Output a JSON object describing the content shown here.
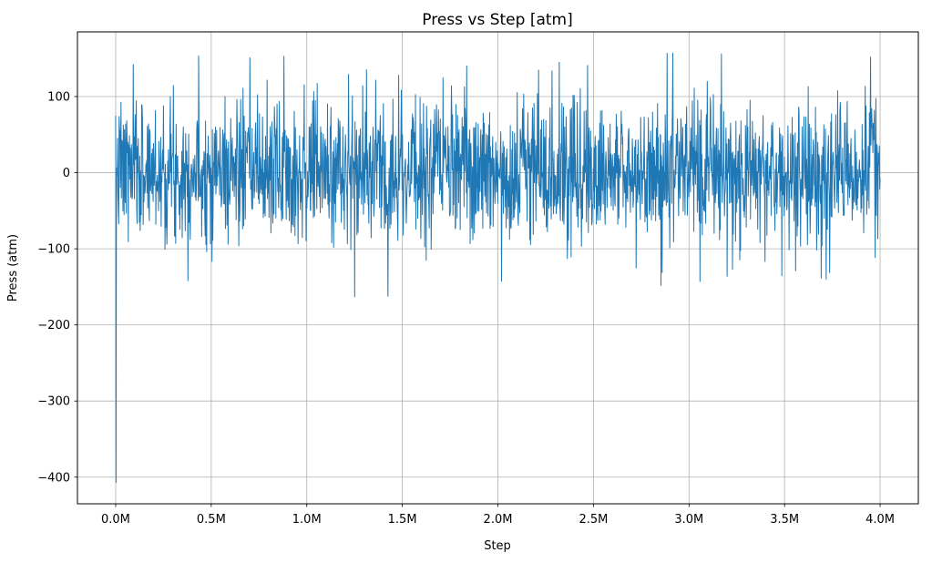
{
  "chart_data": {
    "type": "line",
    "title": "Press vs Step [atm]",
    "xlabel": "Step",
    "ylabel": "Press (atm)",
    "legend": null,
    "grid": true,
    "background_color": "#ffffff",
    "grid_color": "#b0b0b0",
    "spine_color": "#000000",
    "line_color": "#1f77b4",
    "xlim": [
      -200000,
      4200000
    ],
    "ylim": [
      -435,
      185
    ],
    "x_ticks": {
      "values": [
        0,
        500000,
        1000000,
        1500000,
        2000000,
        2500000,
        3000000,
        3500000,
        4000000
      ],
      "labels": [
        "0.0M",
        "0.5M",
        "1.0M",
        "1.5M",
        "2.0M",
        "2.5M",
        "3.0M",
        "3.5M",
        "4.0M"
      ]
    },
    "y_ticks": {
      "values": [
        100,
        0,
        -100,
        -200,
        -300,
        -400
      ],
      "labels": [
        "100",
        "0",
        "−100",
        "−200",
        "−300",
        "−400"
      ]
    },
    "series": {
      "name": "Press",
      "points_estimated": true,
      "n_points": 2000,
      "x_start": 0,
      "x_end": 4000000,
      "baseline_mean": 3,
      "noise_std": 46,
      "value_clamp": [
        -163,
        157
      ],
      "start_value": 75,
      "initial_spike": {
        "x": 2000,
        "y": -407
      },
      "notable_extremes": [
        {
          "x": 880000,
          "y": 153
        },
        {
          "x": 1250000,
          "y": -163
        },
        {
          "x": 1480000,
          "y": 128
        },
        {
          "x": 2470000,
          "y": 141
        },
        {
          "x": 3170000,
          "y": 156
        },
        {
          "x": 3950000,
          "y": 152
        }
      ],
      "seed": 7
    }
  }
}
